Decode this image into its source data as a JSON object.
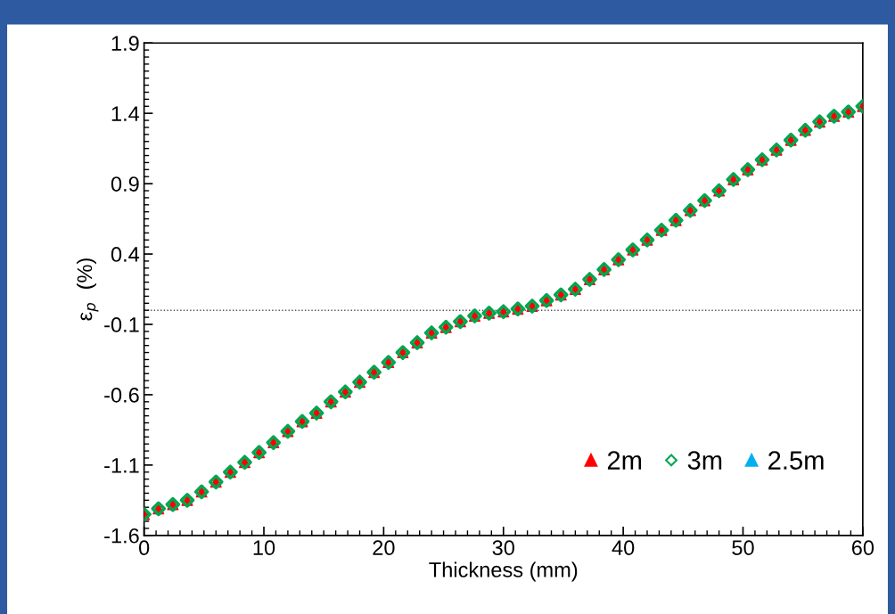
{
  "chart_data": {
    "type": "scatter",
    "xlabel": "Thickness (mm)",
    "ylabel": "ε$_{p}$  (%)",
    "x": [
      0,
      1.2,
      2.4,
      3.6,
      4.8,
      6,
      7.2,
      8.4,
      9.6,
      10.8,
      12,
      13.2,
      14.4,
      15.6,
      16.8,
      18,
      19.2,
      20.4,
      21.6,
      22.8,
      24,
      25.2,
      26.4,
      27.6,
      28.8,
      30,
      31.2,
      32.4,
      33.6,
      34.8,
      36,
      37.2,
      38.4,
      39.6,
      40.8,
      42,
      43.2,
      44.4,
      45.6,
      46.8,
      48,
      49.2,
      50.4,
      51.6,
      52.8,
      54,
      55.2,
      56.4,
      57.6,
      58.8,
      60
    ],
    "series": [
      {
        "name": "2m",
        "color": "#ff0000",
        "marker": "triangle",
        "values": [
          -1.45,
          -1.41,
          -1.38,
          -1.35,
          -1.29,
          -1.22,
          -1.15,
          -1.08,
          -1.01,
          -0.94,
          -0.86,
          -0.79,
          -0.73,
          -0.65,
          -0.58,
          -0.51,
          -0.44,
          -0.37,
          -0.3,
          -0.23,
          -0.16,
          -0.12,
          -0.08,
          -0.04,
          -0.02,
          -0.01,
          0.01,
          0.03,
          0.07,
          0.11,
          0.15,
          0.22,
          0.29,
          0.36,
          0.43,
          0.5,
          0.57,
          0.64,
          0.71,
          0.78,
          0.85,
          0.93,
          1.0,
          1.07,
          1.14,
          1.21,
          1.28,
          1.34,
          1.38,
          1.41,
          1.45
        ]
      },
      {
        "name": "3m",
        "color": "#00a651",
        "marker": "diamond",
        "values": [
          -1.45,
          -1.41,
          -1.38,
          -1.35,
          -1.29,
          -1.22,
          -1.15,
          -1.08,
          -1.01,
          -0.94,
          -0.86,
          -0.79,
          -0.73,
          -0.65,
          -0.58,
          -0.51,
          -0.44,
          -0.37,
          -0.3,
          -0.23,
          -0.16,
          -0.12,
          -0.08,
          -0.04,
          -0.02,
          -0.01,
          0.01,
          0.03,
          0.07,
          0.11,
          0.15,
          0.22,
          0.29,
          0.36,
          0.43,
          0.5,
          0.57,
          0.64,
          0.71,
          0.78,
          0.85,
          0.93,
          1.0,
          1.07,
          1.14,
          1.21,
          1.28,
          1.34,
          1.38,
          1.41,
          1.45
        ]
      },
      {
        "name": "2.5m",
        "color": "#00b0f0",
        "marker": "triangle",
        "values": [
          null,
          null,
          null,
          null,
          null,
          null,
          null,
          null,
          null,
          null,
          null,
          null,
          null,
          null,
          null,
          null,
          null,
          null,
          null,
          null,
          null,
          null,
          null,
          null,
          null,
          null,
          null,
          null,
          null,
          null,
          null,
          null,
          null,
          null,
          null,
          null,
          null,
          null,
          null,
          null,
          null,
          null,
          null,
          null,
          null,
          null,
          null,
          null,
          null,
          null,
          null
        ]
      }
    ],
    "xlim": [
      0,
      60
    ],
    "xticks": [
      0,
      10,
      20,
      30,
      40,
      50,
      60
    ],
    "ylim": [
      -1.6,
      1.9
    ],
    "yticks": [
      -1.6,
      -1.1,
      -0.6,
      -0.1,
      0.4,
      0.9,
      1.4,
      1.9
    ],
    "ref_lines": [
      {
        "axis": "y",
        "value": 0,
        "color": "#555555",
        "line_style": "dotted"
      }
    ],
    "legend": "bottom right",
    "grid": false
  }
}
